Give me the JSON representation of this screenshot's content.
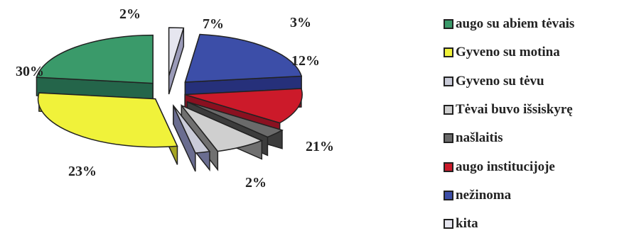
{
  "chart_data": {
    "type": "pie",
    "style": "3d-exploded",
    "legend_position": "right",
    "slices": [
      {
        "label": "augo su abiem tėvais",
        "value": 23,
        "value_label": "23%",
        "color": "#3a9a6a",
        "side_color": "#24654a"
      },
      {
        "label": "Gyveno su motina",
        "value": 30,
        "value_label": "30%",
        "color": "#f0f23a",
        "side_color": "#a7a624"
      },
      {
        "label": "Gyveno su tėvu",
        "value": 2,
        "value_label": "2%",
        "color": "#c9cbd8",
        "side_color": "#6a6d90"
      },
      {
        "label": "Tėvai buvo išsiskyrę",
        "value": 7,
        "value_label": "7%",
        "color": "#cfcfcf",
        "side_color": "#707070"
      },
      {
        "label": "našlaitis",
        "value": 3,
        "value_label": "3%",
        "color": "#6a6a6a",
        "side_color": "#3c3c3c"
      },
      {
        "label": "augo institucijoje",
        "value": 12,
        "value_label": "12%",
        "color": "#cc1a2a",
        "side_color": "#8a1020"
      },
      {
        "label": "nežinoma",
        "value": 21,
        "value_label": "21%",
        "color": "#3c4ea8",
        "side_color": "#26307a"
      },
      {
        "label": "kita",
        "value": 2,
        "value_label": "2%",
        "color": "#e6e6ef",
        "side_color": "#9a9ab8"
      }
    ]
  }
}
